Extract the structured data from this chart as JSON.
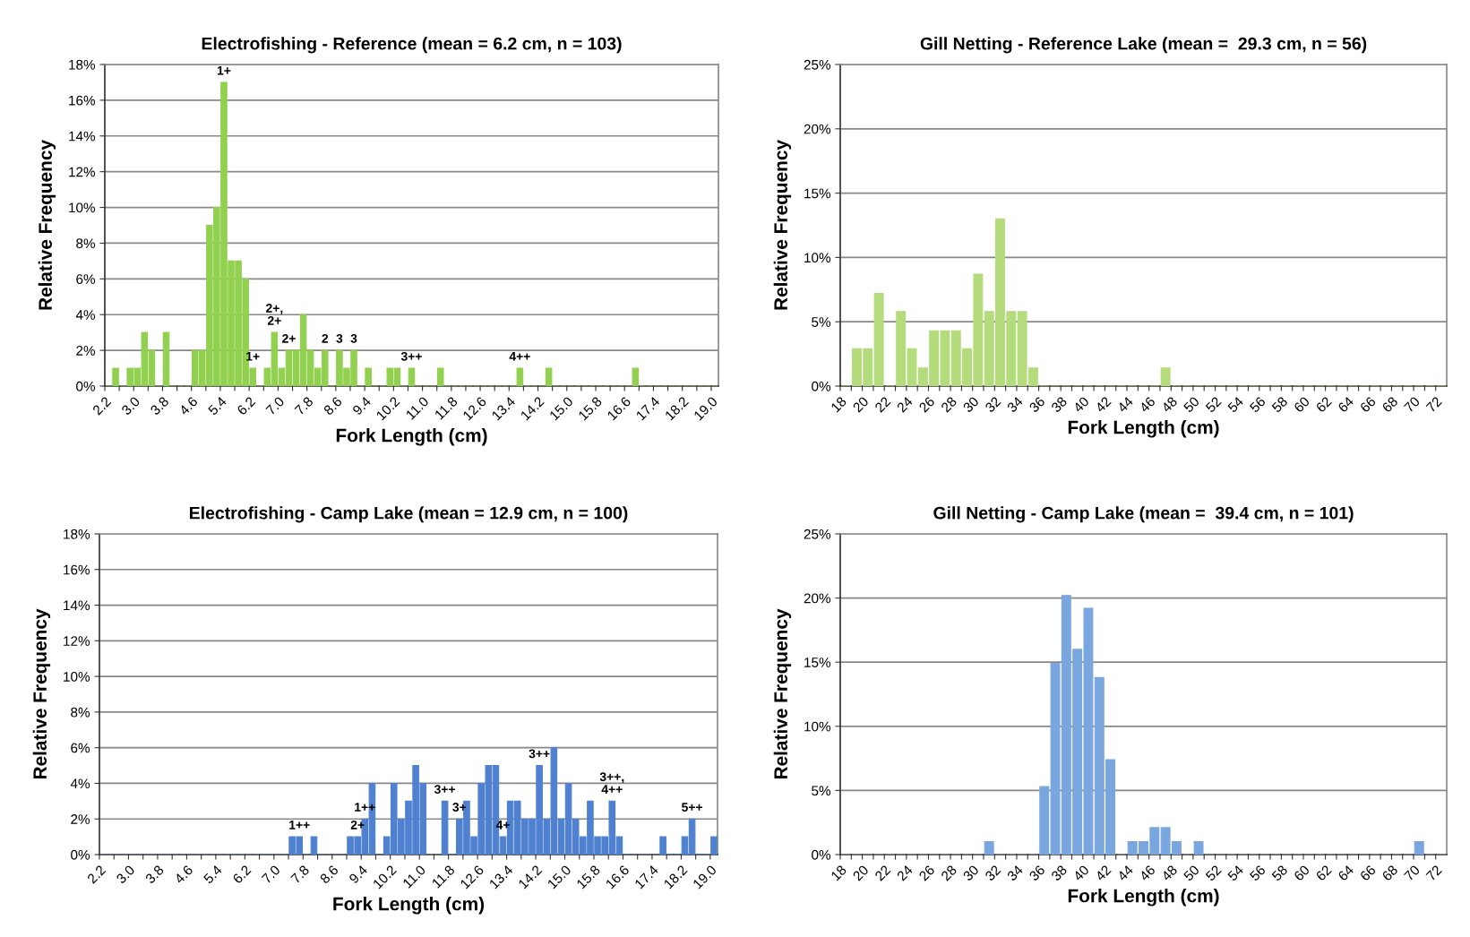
{
  "chart_data": [
    {
      "type": "histogram",
      "title": "Electrofishing - Reference (mean = 6.2 cm, n = 103)",
      "xlabel": "Fork Length (cm)",
      "ylabel": "Relative Frequency",
      "color": "#92d050",
      "grid": "y",
      "bins": [
        2.2,
        2.4,
        2.6,
        2.8,
        3.0,
        3.2,
        3.4,
        3.6,
        3.8,
        4.0,
        4.2,
        4.4,
        4.6,
        4.8,
        5.0,
        5.2,
        5.4,
        5.6,
        5.8,
        6.0,
        6.2,
        6.4,
        6.6,
        6.8,
        7.0,
        7.2,
        7.4,
        7.6,
        7.8,
        8.0,
        8.2,
        8.4,
        8.6,
        8.8,
        9.0,
        9.2,
        9.4,
        9.6,
        9.8,
        10.0,
        10.2,
        10.4,
        10.6,
        10.8,
        11.0,
        11.2,
        11.4,
        11.6,
        11.8,
        12.0,
        12.2,
        12.4,
        12.6,
        12.8,
        13.0,
        13.2,
        13.4,
        13.6,
        13.8,
        14.0,
        14.2,
        14.4,
        14.6,
        14.8,
        15.0,
        15.2,
        15.4,
        15.6,
        15.8,
        16.0,
        16.2,
        16.4,
        16.6,
        16.8,
        17.0,
        17.2,
        17.4,
        17.6,
        17.8,
        18.0,
        18.2,
        18.4,
        18.6,
        18.8,
        19.0,
        19.2
      ],
      "values": [
        0,
        1,
        0,
        1,
        1,
        3,
        2,
        0,
        3,
        0,
        0,
        0,
        2,
        2,
        9,
        10,
        17,
        7,
        7,
        6,
        1,
        0,
        1,
        3,
        1,
        2,
        2,
        4,
        2,
        1,
        2,
        0,
        2,
        1,
        2,
        0,
        1,
        0,
        0,
        1,
        1,
        0,
        1,
        0,
        0,
        0,
        1,
        0,
        0,
        0,
        0,
        0,
        0,
        0,
        0,
        0,
        0,
        1,
        0,
        0,
        0,
        1,
        0,
        0,
        0,
        0,
        0,
        0,
        0,
        0,
        0,
        0,
        0,
        1,
        0,
        0,
        0,
        0,
        0,
        0,
        0,
        0,
        0,
        0,
        0
      ],
      "xlim": [
        2.2,
        19.2
      ],
      "ylim": [
        0,
        18
      ],
      "xticks": [
        2.2,
        {
          "value": 2.6,
          "label": null
        },
        {
          "value": 3,
          "label": "3.0"
        },
        {
          "value": 3.4,
          "label": null
        },
        3.8,
        {
          "value": 4.2,
          "label": null
        },
        4.6,
        {
          "value": 5.0,
          "label": null
        },
        5.4,
        {
          "value": 5.8,
          "label": null
        },
        6.2,
        {
          "value": 6.6,
          "label": null
        },
        {
          "value": 7,
          "label": "7.0"
        },
        {
          "value": 7.4,
          "label": null
        },
        7.8,
        {
          "value": 8.2,
          "label": null
        },
        8.6,
        {
          "value": 9.0,
          "label": null
        },
        9.4,
        {
          "value": 9.8,
          "label": null
        },
        10.2,
        {
          "value": 10.6,
          "label": null
        },
        {
          "value": 11,
          "label": "11.0"
        },
        {
          "value": 11.4,
          "label": null
        },
        11.8,
        {
          "value": 12.2,
          "label": null
        },
        12.6,
        {
          "value": 13.0,
          "label": null
        },
        13.4,
        {
          "value": 13.8,
          "label": null
        },
        14.2,
        {
          "value": 14.6,
          "label": null
        },
        {
          "value": 15,
          "label": "15.0"
        },
        {
          "value": 15.4,
          "label": null
        },
        15.8,
        {
          "value": 16.2,
          "label": null
        },
        16.6,
        {
          "value": 17.0,
          "label": null
        },
        17.4,
        {
          "value": 17.8,
          "label": null
        },
        18.2,
        {
          "value": 18.6,
          "label": null
        },
        {
          "value": 19,
          "label": "19.0"
        }
      ],
      "yticks": [
        {
          "value": 0,
          "label": "0%"
        },
        {
          "value": 2,
          "label": "2%"
        },
        {
          "value": 4,
          "label": "4%"
        },
        {
          "value": 6,
          "label": "6%"
        },
        {
          "value": 8,
          "label": "8%"
        },
        {
          "value": 10,
          "label": "10%"
        },
        {
          "value": 12,
          "label": "12%"
        },
        {
          "value": 14,
          "label": "14%"
        },
        {
          "value": 16,
          "label": "16%"
        },
        {
          "value": 18,
          "label": "18%"
        }
      ],
      "annotations": [
        {
          "text": "1+",
          "x": 5.5,
          "y": 17
        },
        {
          "text": "1+",
          "x": 6.3,
          "y": 1
        },
        {
          "text": "2+,\n2+",
          "x": 6.9,
          "y": 3
        },
        {
          "text": "2+",
          "x": 7.3,
          "y": 2
        },
        {
          "text": "2",
          "x": 8.3,
          "y": 2
        },
        {
          "text": "3",
          "x": 8.7,
          "y": 2
        },
        {
          "text": "3",
          "x": 9.1,
          "y": 2
        },
        {
          "text": "3++",
          "x": 10.7,
          "y": 1
        },
        {
          "text": "4++",
          "x": 13.7,
          "y": 1
        }
      ]
    },
    {
      "type": "histogram",
      "title": "Gill Netting - Reference Lake (mean =  29.3 cm, n = 56)",
      "xlabel": "Fork Length (cm)",
      "ylabel": "Relative Frequency",
      "color": "#b5dc7c",
      "grid": "y",
      "bins": [
        18,
        19,
        20,
        21,
        22,
        23,
        24,
        25,
        26,
        27,
        28,
        29,
        30,
        31,
        32,
        33,
        34,
        35,
        36,
        37,
        38,
        39,
        40,
        41,
        42,
        43,
        44,
        45,
        46,
        47,
        48,
        49,
        50,
        51,
        52,
        53,
        54,
        55,
        56,
        57,
        58,
        59,
        60,
        61,
        62,
        63,
        64,
        65,
        66,
        67,
        68,
        69,
        70,
        71,
        72,
        73
      ],
      "values": [
        0,
        2.9,
        2.9,
        7.2,
        0,
        5.8,
        2.9,
        1.4,
        4.3,
        4.3,
        4.3,
        2.9,
        8.7,
        5.8,
        13.0,
        5.8,
        5.8,
        1.4,
        0,
        0,
        0,
        0,
        0,
        0,
        0,
        0,
        0,
        0,
        0,
        1.4,
        0,
        0,
        0,
        0,
        0,
        0,
        0,
        0,
        0,
        0,
        0,
        0,
        0,
        0,
        0,
        0,
        0,
        0,
        0,
        0,
        0,
        0,
        0,
        0,
        0
      ],
      "xlim": [
        18,
        73
      ],
      "ylim": [
        0,
        25
      ],
      "xticks": [
        18,
        {
          "value": 19,
          "label": null
        },
        20,
        {
          "value": 21,
          "label": null
        },
        22,
        {
          "value": 23,
          "label": null
        },
        24,
        {
          "value": 25,
          "label": null
        },
        26,
        {
          "value": 27,
          "label": null
        },
        28,
        {
          "value": 29,
          "label": null
        },
        30,
        {
          "value": 31,
          "label": null
        },
        32,
        {
          "value": 33,
          "label": null
        },
        34,
        {
          "value": 35,
          "label": null
        },
        36,
        {
          "value": 37,
          "label": null
        },
        38,
        {
          "value": 39,
          "label": null
        },
        40,
        {
          "value": 41,
          "label": null
        },
        42,
        {
          "value": 43,
          "label": null
        },
        44,
        {
          "value": 45,
          "label": null
        },
        46,
        {
          "value": 47,
          "label": null
        },
        48,
        {
          "value": 49,
          "label": null
        },
        50,
        {
          "value": 51,
          "label": null
        },
        52,
        {
          "value": 53,
          "label": null
        },
        54,
        {
          "value": 55,
          "label": null
        },
        56,
        {
          "value": 57,
          "label": null
        },
        58,
        {
          "value": 59,
          "label": null
        },
        60,
        {
          "value": 61,
          "label": null
        },
        62,
        {
          "value": 63,
          "label": null
        },
        64,
        {
          "value": 65,
          "label": null
        },
        66,
        {
          "value": 67,
          "label": null
        },
        68,
        {
          "value": 69,
          "label": null
        },
        70,
        {
          "value": 71,
          "label": null
        },
        72
      ],
      "yticks": [
        {
          "value": 0,
          "label": "0%"
        },
        {
          "value": 5,
          "label": "5%"
        },
        {
          "value": 10,
          "label": "10%"
        },
        {
          "value": 15,
          "label": "15%"
        },
        {
          "value": 20,
          "label": "20%"
        },
        {
          "value": 25,
          "label": "25%"
        }
      ]
    },
    {
      "type": "histogram",
      "title": "Electrofishing - Camp Lake (mean = 12.9 cm, n = 100)",
      "xlabel": "Fork Length (cm)",
      "ylabel": "Relative Frequency",
      "color": "#4f81d0",
      "grid": "y",
      "bins": [
        2.2,
        2.4,
        2.6,
        2.8,
        3.0,
        3.2,
        3.4,
        3.6,
        3.8,
        4.0,
        4.2,
        4.4,
        4.6,
        4.8,
        5.0,
        5.2,
        5.4,
        5.6,
        5.8,
        6.0,
        6.2,
        6.4,
        6.6,
        6.8,
        7.0,
        7.2,
        7.4,
        7.6,
        7.8,
        8.0,
        8.2,
        8.4,
        8.6,
        8.8,
        9.0,
        9.2,
        9.4,
        9.6,
        9.8,
        10.0,
        10.2,
        10.4,
        10.6,
        10.8,
        11.0,
        11.2,
        11.4,
        11.6,
        11.8,
        12.0,
        12.2,
        12.4,
        12.6,
        12.8,
        13.0,
        13.2,
        13.4,
        13.6,
        13.8,
        14.0,
        14.2,
        14.4,
        14.6,
        14.8,
        15.0,
        15.2,
        15.4,
        15.6,
        15.8,
        16.0,
        16.2,
        16.4,
        16.6,
        16.8,
        17.0,
        17.2,
        17.4,
        17.6,
        17.8,
        18.0,
        18.2,
        18.4,
        18.6,
        18.8,
        19.0,
        19.2
      ],
      "values": [
        0,
        0,
        0,
        0,
        0,
        0,
        0,
        0,
        0,
        0,
        0,
        0,
        0,
        0,
        0,
        0,
        0,
        0,
        0,
        0,
        0,
        0,
        0,
        0,
        0,
        0,
        1,
        1,
        0,
        1,
        0,
        0,
        0,
        0,
        1,
        1,
        2,
        4,
        0,
        1,
        4,
        2,
        3,
        5,
        4,
        0,
        0,
        3,
        0,
        2,
        3,
        1,
        4,
        5,
        5,
        1,
        3,
        3,
        2,
        2,
        5,
        2,
        6,
        2,
        4,
        2,
        1,
        3,
        1,
        1,
        3,
        1,
        0,
        0,
        0,
        0,
        0,
        1,
        0,
        0,
        1,
        2,
        0,
        0,
        1
      ],
      "xlim": [
        2.2,
        19.2
      ],
      "ylim": [
        0,
        18
      ],
      "xticks": [
        2.2,
        {
          "value": 2.6,
          "label": null
        },
        {
          "value": 3,
          "label": "3.0"
        },
        {
          "value": 3.4,
          "label": null
        },
        3.8,
        {
          "value": 4.2,
          "label": null
        },
        4.6,
        {
          "value": 5.0,
          "label": null
        },
        5.4,
        {
          "value": 5.8,
          "label": null
        },
        6.2,
        {
          "value": 6.6,
          "label": null
        },
        {
          "value": 7,
          "label": "7.0"
        },
        {
          "value": 7.4,
          "label": null
        },
        7.8,
        {
          "value": 8.2,
          "label": null
        },
        8.6,
        {
          "value": 9.0,
          "label": null
        },
        9.4,
        {
          "value": 9.8,
          "label": null
        },
        10.2,
        {
          "value": 10.6,
          "label": null
        },
        {
          "value": 11,
          "label": "11.0"
        },
        {
          "value": 11.4,
          "label": null
        },
        11.8,
        {
          "value": 12.2,
          "label": null
        },
        12.6,
        {
          "value": 13.0,
          "label": null
        },
        13.4,
        {
          "value": 13.8,
          "label": null
        },
        14.2,
        {
          "value": 14.6,
          "label": null
        },
        {
          "value": 15,
          "label": "15.0"
        },
        {
          "value": 15.4,
          "label": null
        },
        15.8,
        {
          "value": 16.2,
          "label": null
        },
        16.6,
        {
          "value": 17.0,
          "label": null
        },
        17.4,
        {
          "value": 17.8,
          "label": null
        },
        18.2,
        {
          "value": 18.6,
          "label": null
        },
        {
          "value": 19,
          "label": "19.0"
        }
      ],
      "yticks": [
        {
          "value": 0,
          "label": "0%"
        },
        {
          "value": 2,
          "label": "2%"
        },
        {
          "value": 4,
          "label": "4%"
        },
        {
          "value": 6,
          "label": "6%"
        },
        {
          "value": 8,
          "label": "8%"
        },
        {
          "value": 10,
          "label": "10%"
        },
        {
          "value": 12,
          "label": "12%"
        },
        {
          "value": 14,
          "label": "14%"
        },
        {
          "value": 16,
          "label": "16%"
        },
        {
          "value": 18,
          "label": "18%"
        }
      ],
      "annotations": [
        {
          "text": "1++",
          "x": 7.7,
          "y": 1
        },
        {
          "text": "2+",
          "x": 9.3,
          "y": 1
        },
        {
          "text": "1++",
          "x": 9.5,
          "y": 2
        },
        {
          "text": "3++",
          "x": 11.7,
          "y": 3
        },
        {
          "text": "3+",
          "x": 12.1,
          "y": 2
        },
        {
          "text": "4+",
          "x": 13.3,
          "y": 1
        },
        {
          "text": "3++",
          "x": 14.3,
          "y": 5
        },
        {
          "text": "3++,\n4++",
          "x": 16.3,
          "y": 3
        },
        {
          "text": "5++",
          "x": 18.5,
          "y": 2
        }
      ]
    },
    {
      "type": "histogram",
      "title": "Gill Netting - Camp Lake (mean =  39.4 cm, n = 101)",
      "xlabel": "Fork Length (cm)",
      "ylabel": "Relative Frequency",
      "color": "#7aa6e0",
      "grid": "y",
      "bins": [
        18,
        19,
        20,
        21,
        22,
        23,
        24,
        25,
        26,
        27,
        28,
        29,
        30,
        31,
        32,
        33,
        34,
        35,
        36,
        37,
        38,
        39,
        40,
        41,
        42,
        43,
        44,
        45,
        46,
        47,
        48,
        49,
        50,
        51,
        52,
        53,
        54,
        55,
        56,
        57,
        58,
        59,
        60,
        61,
        62,
        63,
        64,
        65,
        66,
        67,
        68,
        69,
        70,
        71,
        72,
        73
      ],
      "values": [
        0,
        0,
        0,
        0,
        0,
        0,
        0,
        0,
        0,
        0,
        0,
        0,
        0,
        1.0,
        0,
        0,
        0,
        0,
        5.3,
        14.9,
        20.2,
        16.0,
        19.2,
        13.8,
        7.4,
        0,
        1.0,
        1.0,
        2.1,
        2.1,
        1.0,
        0,
        1.0,
        0,
        0,
        0,
        0,
        0,
        0,
        0,
        0,
        0,
        0,
        0,
        0,
        0,
        0,
        0,
        0,
        0,
        0,
        0,
        1.0,
        0,
        0
      ],
      "xlim": [
        18,
        73
      ],
      "ylim": [
        0,
        25
      ],
      "xticks": [
        18,
        {
          "value": 19,
          "label": null
        },
        20,
        {
          "value": 21,
          "label": null
        },
        22,
        {
          "value": 23,
          "label": null
        },
        24,
        {
          "value": 25,
          "label": null
        },
        26,
        {
          "value": 27,
          "label": null
        },
        28,
        {
          "value": 29,
          "label": null
        },
        30,
        {
          "value": 31,
          "label": null
        },
        32,
        {
          "value": 33,
          "label": null
        },
        34,
        {
          "value": 35,
          "label": null
        },
        36,
        {
          "value": 37,
          "label": null
        },
        38,
        {
          "value": 39,
          "label": null
        },
        40,
        {
          "value": 41,
          "label": null
        },
        42,
        {
          "value": 43,
          "label": null
        },
        44,
        {
          "value": 45,
          "label": null
        },
        46,
        {
          "value": 47,
          "label": null
        },
        48,
        {
          "value": 49,
          "label": null
        },
        50,
        {
          "value": 51,
          "label": null
        },
        52,
        {
          "value": 53,
          "label": null
        },
        54,
        {
          "value": 55,
          "label": null
        },
        56,
        {
          "value": 57,
          "label": null
        },
        58,
        {
          "value": 59,
          "label": null
        },
        60,
        {
          "value": 61,
          "label": null
        },
        62,
        {
          "value": 63,
          "label": null
        },
        64,
        {
          "value": 65,
          "label": null
        },
        66,
        {
          "value": 67,
          "label": null
        },
        68,
        {
          "value": 69,
          "label": null
        },
        70,
        {
          "value": 71,
          "label": null
        },
        72
      ],
      "yticks": [
        {
          "value": 0,
          "label": "0%"
        },
        {
          "value": 5,
          "label": "5%"
        },
        {
          "value": 10,
          "label": "10%"
        },
        {
          "value": 15,
          "label": "15%"
        },
        {
          "value": 20,
          "label": "20%"
        },
        {
          "value": 25,
          "label": "25%"
        }
      ]
    }
  ]
}
